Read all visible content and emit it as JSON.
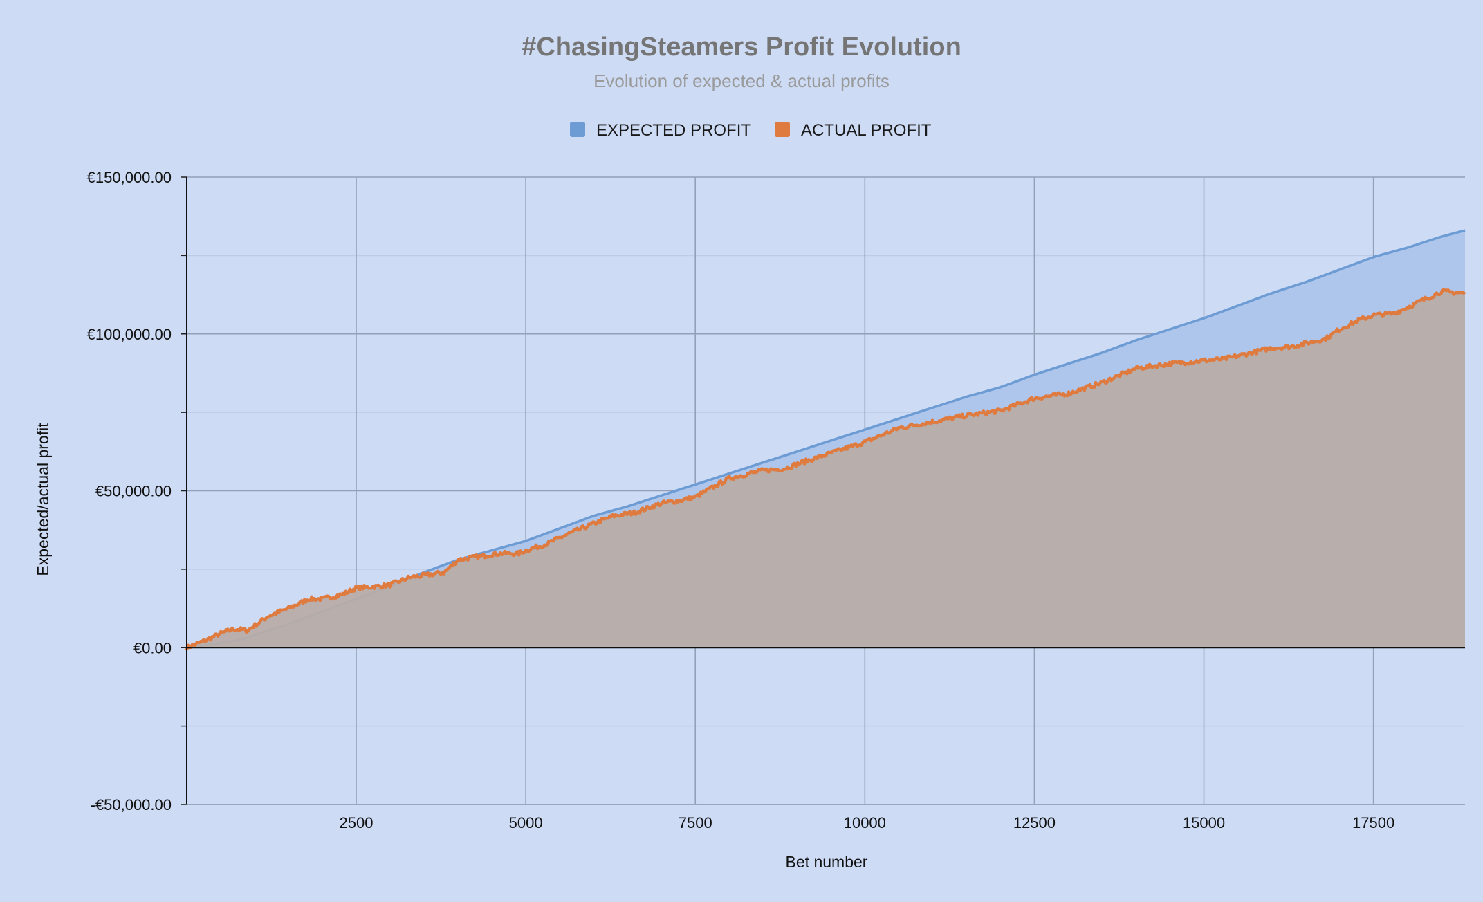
{
  "chart_data": {
    "type": "area",
    "title": "#ChasingSteamers Profit Evolution",
    "subtitle": "Evolution of expected & actual profits",
    "xlabel": "Bet number",
    "ylabel": "Expected/actual profit",
    "xlim": [
      1,
      18850
    ],
    "ylim": [
      -50000,
      150000
    ],
    "x_ticks": [
      2500,
      5000,
      7500,
      10000,
      12500,
      15000,
      17500
    ],
    "x_tick_labels": [
      "2500",
      "5000",
      "7500",
      "10000",
      "12500",
      "15000",
      "17500"
    ],
    "y_ticks": [
      -50000,
      0,
      50000,
      100000,
      150000
    ],
    "y_tick_labels": [
      "-€50,000.00",
      "€0.00",
      "€50,000.00",
      "€100,000.00",
      "€150,000.00"
    ],
    "grid": true,
    "legend_position": "top",
    "series": [
      {
        "name": "EXPECTED PROFIT",
        "color": "#6d9bd4",
        "fill": "#aec6ec",
        "x": [
          0,
          500,
          800,
          1000,
          1500,
          2000,
          2500,
          3000,
          3500,
          4000,
          4500,
          5000,
          5500,
          6000,
          6500,
          7000,
          7500,
          8000,
          8500,
          9000,
          9500,
          10000,
          10500,
          11000,
          11500,
          12000,
          12500,
          13000,
          13500,
          14000,
          14500,
          15000,
          15500,
          16000,
          16500,
          17000,
          17500,
          18000,
          18500,
          18850
        ],
        "values": [
          0,
          1500,
          2500,
          4000,
          7500,
          11500,
          15500,
          19500,
          24000,
          28000,
          31000,
          34000,
          38000,
          42000,
          45000,
          48500,
          52000,
          55500,
          59000,
          62500,
          66000,
          69500,
          73000,
          76500,
          80000,
          83000,
          87000,
          90500,
          94000,
          98000,
          101500,
          105000,
          109000,
          113000,
          116500,
          120500,
          124500,
          127500,
          131000,
          133000
        ]
      },
      {
        "name": "ACTUAL PROFIT",
        "color": "#e07b3f",
        "fill": "#b8ada9",
        "x": [
          0,
          300,
          500,
          700,
          900,
          1000,
          1200,
          1500,
          1800,
          2000,
          2300,
          2500,
          2800,
          3000,
          3300,
          3500,
          3800,
          4000,
          4300,
          4600,
          4900,
          5000,
          5300,
          5600,
          6000,
          6300,
          6600,
          7000,
          7300,
          7500,
          8000,
          8300,
          8500,
          8800,
          9000,
          9500,
          10000,
          10500,
          11000,
          11500,
          12000,
          12500,
          13000,
          13500,
          14000,
          14500,
          15000,
          15300,
          15500,
          15800,
          16000,
          16300,
          16500,
          16800,
          17000,
          17300,
          17500,
          17800,
          18000,
          18300,
          18500,
          18850
        ],
        "values": [
          0,
          2500,
          4500,
          6000,
          5500,
          7000,
          10000,
          12500,
          15500,
          15500,
          17000,
          19000,
          19500,
          20000,
          22500,
          23000,
          24000,
          28000,
          29000,
          30000,
          30000,
          31000,
          33000,
          36000,
          39500,
          42000,
          43000,
          46000,
          47000,
          48000,
          54000,
          55500,
          56500,
          57000,
          58500,
          62000,
          65500,
          70000,
          72000,
          74000,
          75500,
          79500,
          81000,
          84500,
          89000,
          90500,
          91500,
          92000,
          93000,
          94500,
          95500,
          96000,
          97000,
          98500,
          101500,
          104500,
          106000,
          106500,
          108500,
          111500,
          113500,
          113000
        ]
      }
    ]
  }
}
